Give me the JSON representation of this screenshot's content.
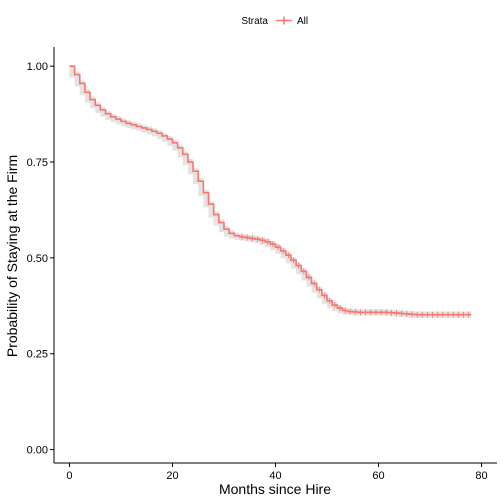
{
  "chart_data": {
    "type": "line",
    "subtype": "kaplan-meier-step",
    "title": "",
    "xlabel": "Months since Hire",
    "ylabel": "Probability of Staying at the Firm",
    "xlim": [
      -3,
      83
    ],
    "ylim": [
      -0.035,
      1.05
    ],
    "x_ticks": [
      0,
      20,
      40,
      60,
      80
    ],
    "y_ticks": [
      0.0,
      0.25,
      0.5,
      0.75,
      1.0
    ],
    "x_tick_labels": [
      "0",
      "20",
      "40",
      "60",
      "80"
    ],
    "y_tick_labels": [
      "0.00",
      "0.25",
      "0.50",
      "0.75",
      "1.00"
    ],
    "grid": false,
    "legend": {
      "position": "top",
      "title": "Strata",
      "entries": [
        "All"
      ]
    },
    "series": [
      {
        "name": "All",
        "color": "#F8766D",
        "ci_color": "#d9d9d9",
        "ci_halfwidth": 0.008,
        "x": [
          0,
          1,
          2,
          3,
          4,
          5,
          6,
          7,
          8,
          9,
          10,
          11,
          12,
          13,
          14,
          15,
          16,
          17,
          18,
          19,
          20,
          21,
          22,
          23,
          24,
          25,
          26,
          27,
          28,
          29,
          30,
          31,
          32,
          33,
          34,
          35,
          36,
          37,
          38,
          39,
          40,
          41,
          42,
          43,
          44,
          45,
          46,
          47,
          48,
          49,
          50,
          51,
          52,
          53,
          54,
          55,
          56,
          57,
          58,
          59,
          60,
          61,
          62,
          63,
          64,
          65,
          66,
          67,
          68,
          69,
          70,
          71,
          72,
          73,
          74,
          75,
          76,
          77,
          78
        ],
        "y": [
          1.0,
          0.978,
          0.955,
          0.932,
          0.913,
          0.898,
          0.886,
          0.876,
          0.868,
          0.862,
          0.856,
          0.851,
          0.847,
          0.843,
          0.839,
          0.835,
          0.83,
          0.825,
          0.818,
          0.81,
          0.8,
          0.787,
          0.77,
          0.75,
          0.726,
          0.7,
          0.67,
          0.64,
          0.613,
          0.592,
          0.575,
          0.564,
          0.558,
          0.555,
          0.553,
          0.551,
          0.549,
          0.546,
          0.542,
          0.536,
          0.528,
          0.518,
          0.507,
          0.494,
          0.48,
          0.465,
          0.449,
          0.433,
          0.417,
          0.402,
          0.388,
          0.377,
          0.369,
          0.363,
          0.36,
          0.359,
          0.358,
          0.358,
          0.358,
          0.358,
          0.358,
          0.358,
          0.357,
          0.356,
          0.355,
          0.354,
          0.353,
          0.352,
          0.352,
          0.352,
          0.352,
          0.352,
          0.352,
          0.352,
          0.352,
          0.352,
          0.352,
          0.352,
          0.352
        ]
      }
    ]
  }
}
